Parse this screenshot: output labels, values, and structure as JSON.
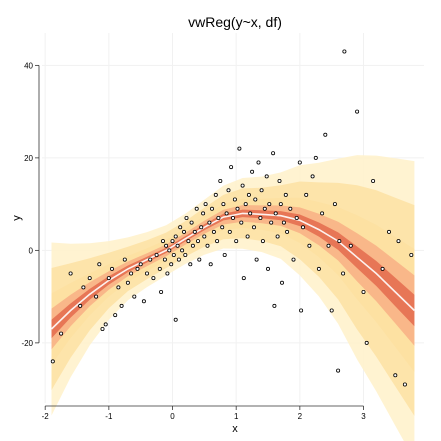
{
  "chart_data": {
    "type": "scatter",
    "title": "vwReg(y~x, df)",
    "xlabel": "x",
    "ylabel": "y",
    "xlim": [
      -2.05,
      3.95
    ],
    "ylim": [
      -33,
      47
    ],
    "x_ticks": [
      -2,
      -1,
      0,
      1,
      2,
      3
    ],
    "y_ticks": [
      -20,
      0,
      20,
      40
    ],
    "grid": true,
    "points": [
      [
        -1.88,
        -24.0
      ],
      [
        -1.75,
        -18.0
      ],
      [
        -1.6,
        -5.0
      ],
      [
        -1.45,
        -12.0
      ],
      [
        -1.4,
        -8.0
      ],
      [
        -1.3,
        -6.0
      ],
      [
        -1.2,
        -10.0
      ],
      [
        -1.15,
        -3.0
      ],
      [
        -1.1,
        -17.0
      ],
      [
        -1.05,
        -16.0
      ],
      [
        -1.0,
        -6.0
      ],
      [
        -0.95,
        -4.0
      ],
      [
        -0.9,
        -14.0
      ],
      [
        -0.85,
        -8.0
      ],
      [
        -0.8,
        -12.0
      ],
      [
        -0.75,
        -2.0
      ],
      [
        -0.7,
        -7.0
      ],
      [
        -0.65,
        -5.0
      ],
      [
        -0.6,
        -10.0
      ],
      [
        -0.55,
        -4.0
      ],
      [
        -0.5,
        -3.0
      ],
      [
        -0.45,
        -11.0
      ],
      [
        -0.4,
        -5.0
      ],
      [
        -0.35,
        -2.0
      ],
      [
        -0.3,
        -6.0
      ],
      [
        -0.25,
        -1.0
      ],
      [
        -0.2,
        -4.0
      ],
      [
        -0.18,
        -9.0
      ],
      [
        -0.15,
        2.0
      ],
      [
        -0.12,
        -2.0
      ],
      [
        -0.1,
        1.0
      ],
      [
        -0.08,
        -5.0
      ],
      [
        -0.05,
        0.0
      ],
      [
        -0.02,
        -3.0
      ],
      [
        0.0,
        2.0
      ],
      [
        0.02,
        -1.0
      ],
      [
        0.05,
        3.0
      ],
      [
        0.05,
        -15.0
      ],
      [
        0.08,
        1.0
      ],
      [
        0.1,
        -2.0
      ],
      [
        0.12,
        5.0
      ],
      [
        0.15,
        0.0
      ],
      [
        0.18,
        4.0
      ],
      [
        0.2,
        -1.0
      ],
      [
        0.22,
        7.0
      ],
      [
        0.25,
        2.0
      ],
      [
        0.28,
        -3.0
      ],
      [
        0.3,
        6.0
      ],
      [
        0.32,
        1.0
      ],
      [
        0.35,
        4.0
      ],
      [
        0.38,
        9.0
      ],
      [
        0.4,
        2.0
      ],
      [
        0.42,
        -2.0
      ],
      [
        0.45,
        5.0
      ],
      [
        0.48,
        8.0
      ],
      [
        0.5,
        3.0
      ],
      [
        0.52,
        10.0
      ],
      [
        0.55,
        1.0
      ],
      [
        0.58,
        6.0
      ],
      [
        0.6,
        -3.0
      ],
      [
        0.62,
        9.0
      ],
      [
        0.65,
        4.0
      ],
      [
        0.68,
        12.0
      ],
      [
        0.7,
        2.0
      ],
      [
        0.72,
        7.0
      ],
      [
        0.75,
        15.0
      ],
      [
        0.78,
        5.0
      ],
      [
        0.8,
        10.0
      ],
      [
        0.82,
        -1.0
      ],
      [
        0.85,
        8.0
      ],
      [
        0.88,
        13.0
      ],
      [
        0.9,
        4.0
      ],
      [
        0.92,
        18.0
      ],
      [
        0.95,
        7.0
      ],
      [
        0.98,
        11.0
      ],
      [
        1.0,
        2.0
      ],
      [
        1.02,
        9.0
      ],
      [
        1.05,
        22.0
      ],
      [
        1.08,
        6.0
      ],
      [
        1.1,
        14.0
      ],
      [
        1.12,
        -6.0
      ],
      [
        1.15,
        10.0
      ],
      [
        1.18,
        3.0
      ],
      [
        1.2,
        12.0
      ],
      [
        1.22,
        8.0
      ],
      [
        1.25,
        17.0
      ],
      [
        1.28,
        5.0
      ],
      [
        1.3,
        11.0
      ],
      [
        1.32,
        -2.0
      ],
      [
        1.35,
        19.0
      ],
      [
        1.38,
        7.0
      ],
      [
        1.4,
        13.0
      ],
      [
        1.42,
        2.0
      ],
      [
        1.45,
        9.0
      ],
      [
        1.48,
        16.0
      ],
      [
        1.5,
        -4.0
      ],
      [
        1.52,
        10.0
      ],
      [
        1.55,
        6.0
      ],
      [
        1.58,
        21.0
      ],
      [
        1.6,
        -12.0
      ],
      [
        1.62,
        8.0
      ],
      [
        1.65,
        3.0
      ],
      [
        1.68,
        15.0
      ],
      [
        1.7,
        10.0
      ],
      [
        1.72,
        -7.0
      ],
      [
        1.75,
        6.0
      ],
      [
        1.78,
        12.0
      ],
      [
        1.8,
        4.0
      ],
      [
        1.85,
        9.0
      ],
      [
        1.9,
        -2.0
      ],
      [
        1.95,
        7.0
      ],
      [
        2.0,
        19.0
      ],
      [
        2.02,
        -13.0
      ],
      [
        2.05,
        5.0
      ],
      [
        2.1,
        12.0
      ],
      [
        2.15,
        1.0
      ],
      [
        2.2,
        16.0
      ],
      [
        2.25,
        20.0
      ],
      [
        2.3,
        -4.0
      ],
      [
        2.35,
        8.0
      ],
      [
        2.4,
        25.0
      ],
      [
        2.45,
        1.0
      ],
      [
        2.5,
        -13.0
      ],
      [
        2.55,
        10.0
      ],
      [
        2.6,
        -26.0
      ],
      [
        2.62,
        2.0
      ],
      [
        2.68,
        -5.0
      ],
      [
        2.7,
        43.0
      ],
      [
        2.8,
        1.0
      ],
      [
        2.9,
        30.0
      ],
      [
        3.0,
        -9.0
      ],
      [
        3.05,
        -20.0
      ],
      [
        3.15,
        15.0
      ],
      [
        3.3,
        -4.0
      ],
      [
        3.4,
        4.0
      ],
      [
        3.5,
        -27.0
      ],
      [
        3.55,
        2.0
      ],
      [
        3.65,
        -29.0
      ],
      [
        3.75,
        -1.0
      ]
    ],
    "fit": {
      "x": [
        -1.9,
        -1.6,
        -1.3,
        -1.0,
        -0.7,
        -0.4,
        -0.1,
        0.2,
        0.5,
        0.8,
        1.1,
        1.4,
        1.7,
        2.0,
        2.3,
        2.6,
        2.9,
        3.2,
        3.5,
        3.8
      ],
      "y": [
        -17.0,
        -13.0,
        -9.5,
        -6.5,
        -4.0,
        -2.0,
        0.0,
        2.5,
        5.0,
        7.2,
        8.0,
        7.8,
        7.5,
        6.5,
        4.5,
        2.0,
        -1.5,
        -5.0,
        -9.0,
        -13.0
      ],
      "spread": [
        11.0,
        8.5,
        6.5,
        5.0,
        4.0,
        3.5,
        3.2,
        3.2,
        3.5,
        4.0,
        4.5,
        4.8,
        5.5,
        7.0,
        8.5,
        10.5,
        13.0,
        15.0,
        17.0,
        19.0
      ]
    },
    "colors": {
      "band_outer": "#fff2cc",
      "band_mid": "#fde0a0",
      "band_inner": "#f7a880",
      "core": "#e05a40",
      "median_line": "#ffffff",
      "points": "#000000"
    }
  }
}
